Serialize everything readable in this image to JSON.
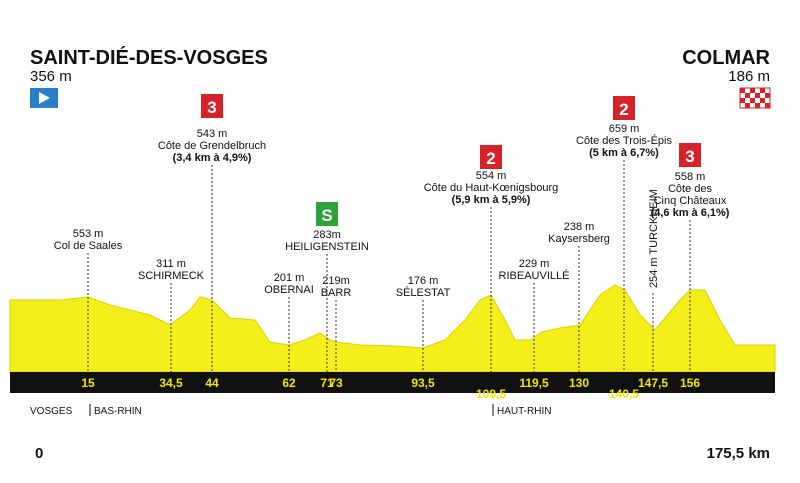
{
  "start": {
    "name": "SAINT-DIÉ-DES-VOSGES",
    "altitude": "356 m"
  },
  "finish": {
    "name": "COLMAR",
    "altitude": "186 m"
  },
  "points": [
    {
      "km": "15",
      "lines": [
        "553 m",
        "Col de Saales"
      ]
    },
    {
      "km": "34,5",
      "lines": [
        "311 m",
        "SCHIRMECK"
      ]
    },
    {
      "km": "44",
      "badge": "3",
      "lines": [
        "543 m",
        "Côte de Grendelbruch",
        "(3,4 km à 4,9%)"
      ]
    },
    {
      "km": "62",
      "lines": [
        "201 m",
        "OBERNAI"
      ]
    },
    {
      "km": "71",
      "badge": "S",
      "lines": [
        "283m",
        "HEILIGENSTEIN"
      ]
    },
    {
      "km": "73",
      "lines": [
        "219m",
        "BARR"
      ]
    },
    {
      "km": "93,5",
      "lines": [
        "176 m",
        "SÉLESTAT"
      ]
    },
    {
      "km": "109,5",
      "badge": "2",
      "lines": [
        "554 m",
        "Côte du Haut-Kœnigsbourg",
        "(5,9 km à 5,9%)"
      ]
    },
    {
      "km": "119,5",
      "lines": [
        "229 m",
        "RIBEAUVILLÉ"
      ]
    },
    {
      "km": "130",
      "lines": [
        "238 m",
        "Kaysersberg"
      ]
    },
    {
      "km": "140,5",
      "badge": "2",
      "lines": [
        "659 m",
        "Côte des Trois-Épis",
        "(5 km à 6,7%)"
      ]
    },
    {
      "km": "147,5",
      "lines": [
        "254 m TURCKHEIM"
      ]
    },
    {
      "km": "156",
      "badge": "3",
      "lines": [
        "558 m",
        "Côte des",
        "Cinq Châteaux",
        "(4,6 km à 6,1%)"
      ]
    }
  ],
  "regions": [
    "VOSGES",
    "BAS-RHIN",
    "HAUT-RHIN"
  ],
  "distance": {
    "start": "0",
    "end": "175,5 km"
  }
}
